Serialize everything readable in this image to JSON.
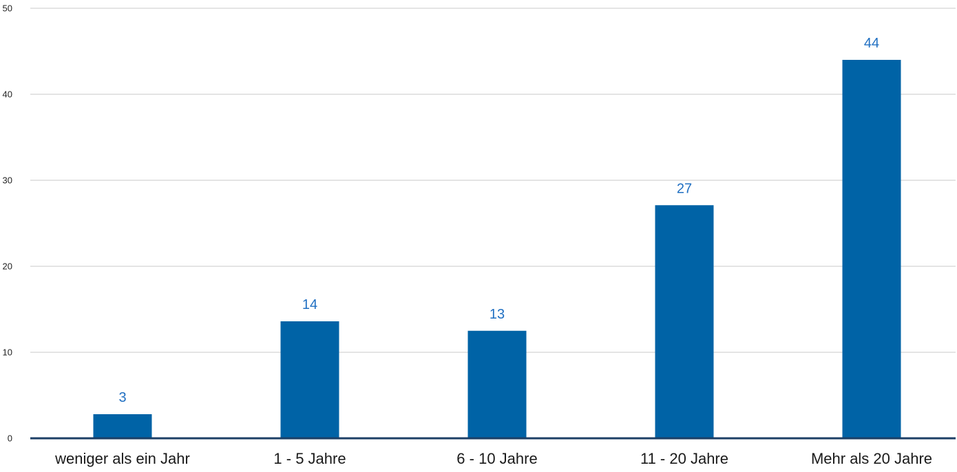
{
  "chart_data": {
    "type": "bar",
    "categories": [
      "weniger als ein Jahr",
      "1 - 5 Jahre",
      "6 - 10 Jahre",
      "11 - 20 Jahre",
      "Mehr als 20 Jahre"
    ],
    "values": [
      2.8,
      13.6,
      12.5,
      27.1,
      44.0
    ],
    "data_labels": [
      "3",
      "14",
      "13",
      "27",
      "44"
    ],
    "title": "",
    "xlabel": "",
    "ylabel": "",
    "ylim": [
      0,
      50
    ],
    "yticks": [
      0,
      10,
      20,
      30,
      40,
      50
    ],
    "grid": true,
    "legend": "none",
    "bar_color": "#0063a6",
    "label_color": "#1f6fc2"
  }
}
